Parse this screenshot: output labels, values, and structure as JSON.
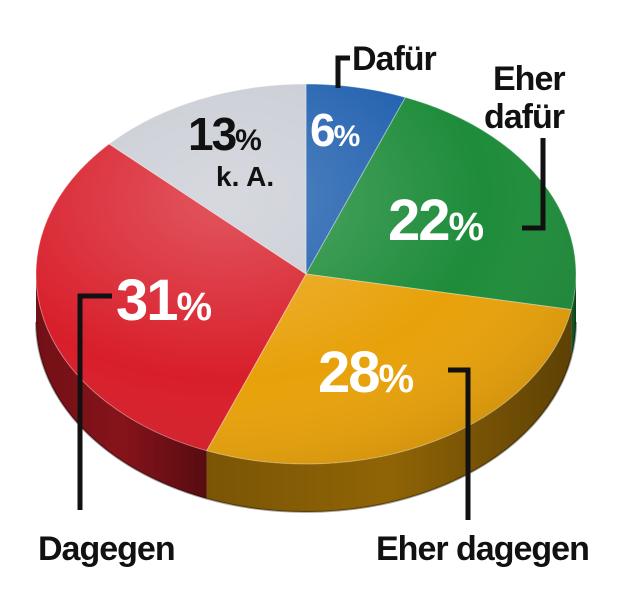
{
  "chart_data": {
    "type": "pie",
    "slices": [
      {
        "label": "Dafür",
        "value": 6,
        "color": "#1f5fae"
      },
      {
        "label": "Eher dafür",
        "value": 22,
        "color": "#1e8c3a"
      },
      {
        "label": "Eher dagegen",
        "value": 28,
        "color": "#e8a10a"
      },
      {
        "label": "Dagegen",
        "value": 31,
        "color": "#d81e2a"
      },
      {
        "label": "k. A.",
        "value": 13,
        "color": "#c9ccd4"
      }
    ],
    "unit": "%"
  }
}
